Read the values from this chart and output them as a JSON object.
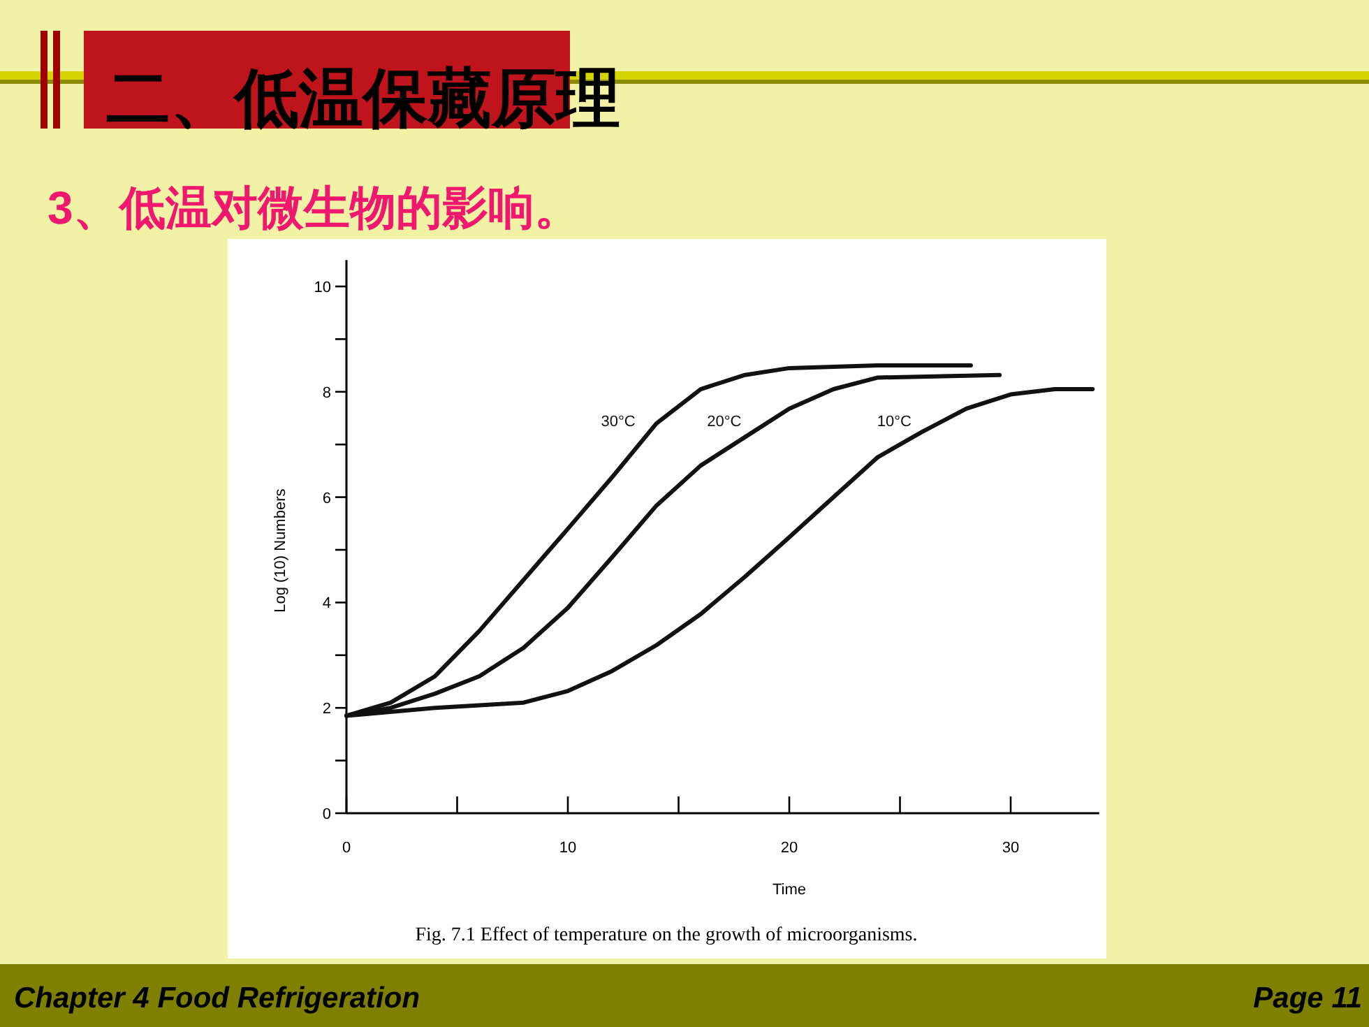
{
  "chart_data": {
    "type": "line",
    "title": "二、低温保藏原理",
    "subtitle": "3、低温对微生物的影响。",
    "xlabel": "Time",
    "ylabel": "Log (10) Numbers",
    "series": [
      {
        "name": "30°C",
        "color": "#111111",
        "x": [
          0,
          2,
          4,
          6,
          8,
          10,
          12,
          14,
          16,
          18,
          20,
          24,
          28.2
        ],
        "values": [
          1.85,
          2.1,
          2.6,
          3.46,
          4.43,
          5.4,
          6.38,
          7.4,
          8.05,
          8.32,
          8.45,
          8.5,
          8.5
        ]
      },
      {
        "name": "20°C",
        "color": "#111111",
        "x": [
          0,
          2,
          4,
          6,
          8,
          10,
          12,
          14,
          16,
          18,
          20,
          22,
          24,
          29.5
        ],
        "values": [
          1.85,
          2.0,
          2.27,
          2.6,
          3.14,
          3.9,
          4.86,
          5.84,
          6.6,
          7.14,
          7.68,
          8.05,
          8.27,
          8.32
        ]
      },
      {
        "name": "10°C",
        "color": "#111111",
        "x": [
          0,
          4,
          8,
          10,
          12,
          14,
          16,
          18,
          20,
          22,
          24,
          26,
          28,
          30,
          32,
          33.7
        ],
        "values": [
          1.85,
          2.0,
          2.1,
          2.32,
          2.7,
          3.19,
          3.78,
          4.49,
          5.24,
          6.0,
          6.76,
          7.24,
          7.68,
          7.95,
          8.05,
          8.05
        ]
      }
    ],
    "xlim": [
      0,
      34
    ],
    "ylim": [
      0,
      10.5
    ],
    "xticks": [
      0,
      {
        "value": 5,
        "label": null
      },
      10,
      {
        "value": 15,
        "label": null
      },
      20,
      {
        "value": 25,
        "label": null
      },
      30
    ],
    "yticks": [
      0,
      {
        "value": 1,
        "label": null
      },
      2,
      {
        "value": 3,
        "label": null
      },
      4,
      {
        "value": 5,
        "label": null
      },
      6,
      {
        "value": 7,
        "label": null
      },
      8,
      {
        "value": 9,
        "label": null
      },
      10
    ],
    "marker": "none",
    "line_style": "solid",
    "grid": false,
    "annotations": [
      "Fig. 7.1    Effect of temperature on the growth of microorganisms.",
      "Chapter 4 Food Refrigeration",
      "Page 11"
    ]
  }
}
